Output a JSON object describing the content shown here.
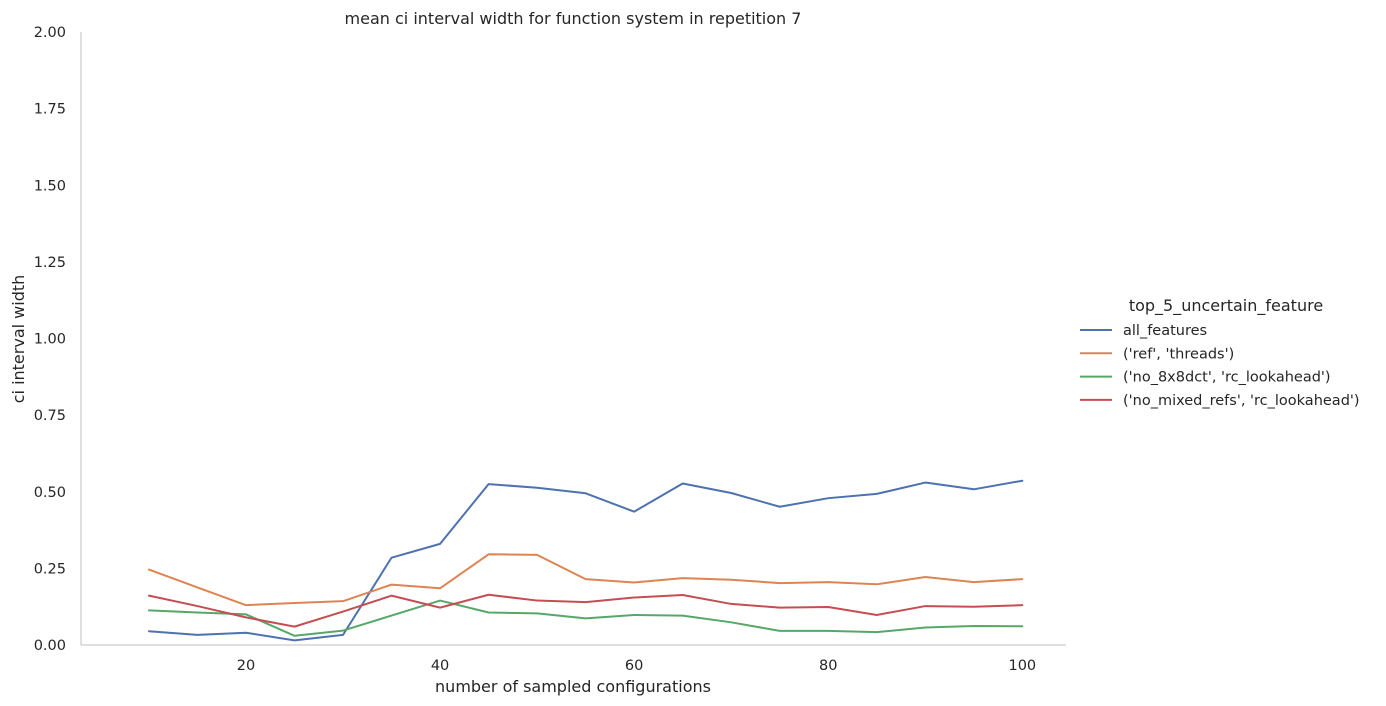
{
  "chart_data": {
    "type": "line",
    "title": "mean ci interval width for function system in repetition 7",
    "xlabel": "number of sampled configurations",
    "ylabel": "ci interval width",
    "xlim": [
      3,
      104.5
    ],
    "ylim": [
      0,
      2
    ],
    "xticks": [
      20,
      40,
      60,
      80,
      100
    ],
    "yticks": [
      "0.00",
      "0.25",
      "0.50",
      "0.75",
      "1.00",
      "1.25",
      "1.50",
      "1.75",
      "2.00"
    ],
    "grid": false,
    "legend": {
      "title": "top_5_uncertain_feature",
      "position": "right"
    },
    "x": [
      10,
      15,
      20,
      25,
      30,
      35,
      40,
      45,
      50,
      55,
      60,
      65,
      70,
      75,
      80,
      85,
      90,
      95,
      100
    ],
    "series": [
      {
        "name": "all_features",
        "color": "#4c72b0",
        "values": [
          0.045,
          0.033,
          0.04,
          0.015,
          0.033,
          0.285,
          0.33,
          0.525,
          0.513,
          0.495,
          0.435,
          0.527,
          0.496,
          0.451,
          0.479,
          0.493,
          0.53,
          0.508,
          0.536
        ]
      },
      {
        "name": "('ref', 'threads')",
        "color": "#dd8452",
        "values": [
          0.246,
          0.188,
          0.13,
          0.137,
          0.143,
          0.197,
          0.185,
          0.296,
          0.294,
          0.215,
          0.204,
          0.218,
          0.213,
          0.202,
          0.205,
          0.198,
          0.222,
          0.205,
          0.215
        ]
      },
      {
        "name": "('no_8x8dct', 'rc_lookahead')",
        "color": "#55a868",
        "values": [
          0.113,
          0.106,
          0.1,
          0.03,
          0.047,
          0.096,
          0.145,
          0.106,
          0.103,
          0.087,
          0.098,
          0.096,
          0.074,
          0.046,
          0.046,
          0.042,
          0.057,
          0.062,
          0.061
        ]
      },
      {
        "name": "('no_mixed_refs', 'rc_lookahead')",
        "color": "#c44e52",
        "values": [
          0.161,
          0.127,
          0.09,
          0.06,
          0.109,
          0.161,
          0.122,
          0.164,
          0.145,
          0.14,
          0.155,
          0.163,
          0.134,
          0.122,
          0.124,
          0.098,
          0.127,
          0.125,
          0.13
        ]
      }
    ]
  }
}
